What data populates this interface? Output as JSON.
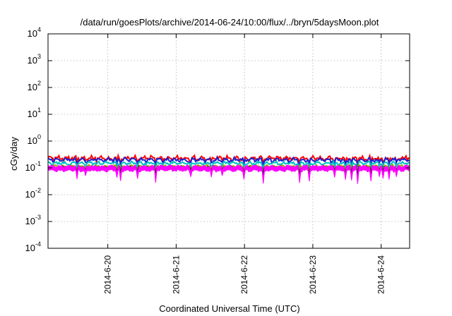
{
  "chart_data": {
    "type": "line",
    "title": "/data/run/goesPlots/archive/2014-06-24/10:00/flux/../bryn/5daysMoon.plot",
    "xlabel": "Coordinated Universal Time (UTC)",
    "ylabel": "cGy/day",
    "yscale": "log",
    "ylim": [
      0.0001,
      10000
    ],
    "y_ticks": [
      {
        "exp": "-4",
        "value": 0.0001
      },
      {
        "exp": "-3",
        "value": 0.001
      },
      {
        "exp": "-2",
        "value": 0.01
      },
      {
        "exp": "-1",
        "value": 0.1
      },
      {
        "exp": "0",
        "value": 1
      },
      {
        "exp": "1",
        "value": 10
      },
      {
        "exp": "2",
        "value": 100
      },
      {
        "exp": "3",
        "value": 1000
      },
      {
        "exp": "4",
        "value": 10000
      }
    ],
    "x_range": [
      "2014-06-19T03:00",
      "2014-06-24T10:00"
    ],
    "x_ticks": [
      {
        "label": "2014-6-20",
        "date": "2014-06-20T00:00"
      },
      {
        "label": "2014-6-21",
        "date": "2014-06-21T00:00"
      },
      {
        "label": "2014-6-22",
        "date": "2014-06-22T00:00"
      },
      {
        "label": "2014-6-23",
        "date": "2014-06-23T00:00"
      },
      {
        "label": "2014-6-24",
        "date": "2014-06-24T00:00"
      }
    ],
    "grid": true,
    "series": [
      {
        "color": "#ff0000",
        "level": 0.23,
        "amp": 0.22,
        "dipDepth": 0.35
      },
      {
        "color": "#1f1fd0",
        "level": 0.2,
        "amp": 0.2,
        "dipDepth": 0.35
      },
      {
        "color": "#00c0c0",
        "level": 0.15,
        "amp": 0.16,
        "dipDepth": 0.4
      },
      {
        "color": "#a0a000",
        "level": 0.115,
        "amp": 0.12,
        "dipDepth": 0.45
      },
      {
        "color": "#1a1a1a",
        "level": 0.105,
        "amp": 0.1,
        "dipDepth": 0.5
      },
      {
        "color": "#ff00ff",
        "level": 0.08,
        "amp": 0.12,
        "dipDepth": 0.7,
        "filled": true
      }
    ]
  }
}
